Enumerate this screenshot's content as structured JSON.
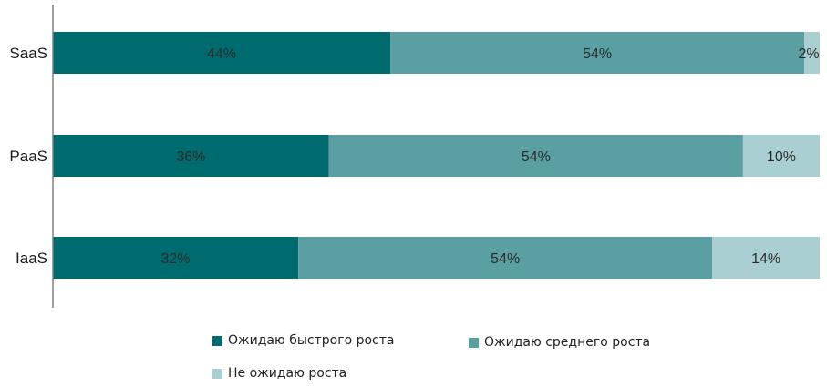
{
  "chart_data": {
    "type": "bar",
    "orientation": "horizontal",
    "stacked": true,
    "categories": [
      "SaaS",
      "PaaS",
      "IaaS"
    ],
    "series": [
      {
        "name": "Ожидаю быстрого роста",
        "values": [
          44,
          36,
          32
        ],
        "color": "#006b6e"
      },
      {
        "name": "Ожидаю среднего роста",
        "values": [
          54,
          54,
          54
        ],
        "color": "#5a9fa2"
      },
      {
        "name": "Не ожидаю роста",
        "values": [
          2,
          10,
          14
        ],
        "color": "#aacfd2"
      }
    ],
    "data_labels": [
      [
        "44%",
        "54%",
        "2%"
      ],
      [
        "36%",
        "54%",
        "10%"
      ],
      [
        "32%",
        "54%",
        "14%"
      ]
    ],
    "xlim": [
      0,
      100
    ],
    "grid": false,
    "legend_position": "bottom",
    "axis_color": "#808080"
  }
}
